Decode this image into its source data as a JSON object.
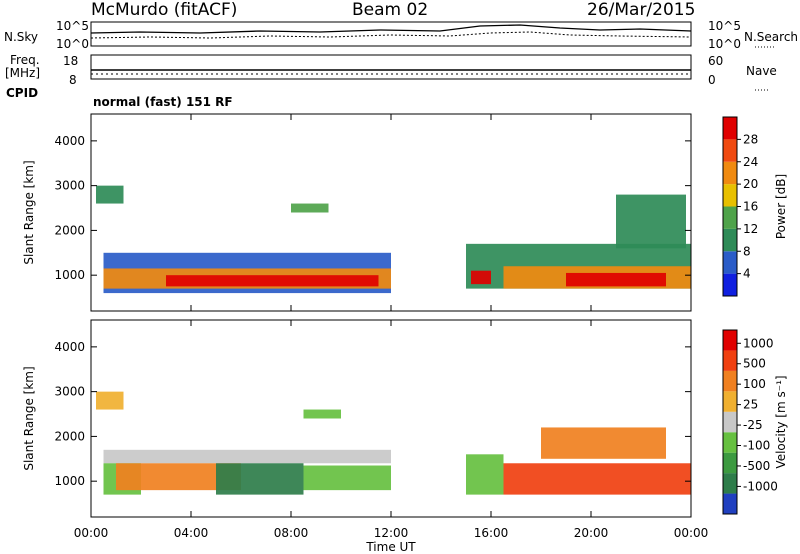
{
  "header": {
    "station": "McMurdo (fitACF)",
    "beam": "Beam 02",
    "date": "26/Mar/2015"
  },
  "top_panel": {
    "left_label": "N.Sky",
    "right_label": "N.Search",
    "left_ticks": [
      "10^5",
      "10^0"
    ],
    "right_ticks": [
      "10^5",
      "10^0"
    ]
  },
  "freq_panel": {
    "left_label_line1": "Freq.",
    "left_label_line2": "[MHz]",
    "left_ticks": [
      "18",
      "8"
    ],
    "right_label": "Nave",
    "right_ticks": [
      "60",
      "0"
    ]
  },
  "cpid": {
    "label": "CPID",
    "value": "normal (fast) 151 RF"
  },
  "chart_data": [
    {
      "type": "heatmap",
      "name": "power",
      "xlabel": "",
      "ylabel": "Slant Range [km]",
      "ylim": [
        200,
        4600
      ],
      "yticks": [
        "1000",
        "2000",
        "3000",
        "4000"
      ],
      "ytick_values": [
        1000,
        2000,
        3000,
        4000
      ],
      "colorbar": {
        "label": "Power [dB]",
        "ticks": [
          "4",
          "8",
          "12",
          "16",
          "20",
          "24",
          "28"
        ],
        "colors": [
          "#1020e0",
          "#2a5cc8",
          "#2e8b57",
          "#4fa34a",
          "#e8c000",
          "#f08a10",
          "#f04a10",
          "#e00000"
        ]
      },
      "regions": [
        {
          "t0": 0.5,
          "t1": 12.0,
          "r0": 600,
          "r1": 1500,
          "level": 1
        },
        {
          "t0": 0.5,
          "t1": 12.0,
          "r0": 700,
          "r1": 1150,
          "level": 5
        },
        {
          "t0": 3.0,
          "t1": 11.5,
          "r0": 750,
          "r1": 1000,
          "level": 7
        },
        {
          "t0": 15.0,
          "t1": 24.0,
          "r0": 700,
          "r1": 1700,
          "level": 2
        },
        {
          "t0": 15.2,
          "t1": 16.0,
          "r0": 800,
          "r1": 1100,
          "level": 7
        },
        {
          "t0": 16.5,
          "t1": 24.0,
          "r0": 700,
          "r1": 1200,
          "level": 5
        },
        {
          "t0": 19.0,
          "t1": 23.0,
          "r0": 750,
          "r1": 1050,
          "level": 7
        },
        {
          "t0": 0.2,
          "t1": 1.3,
          "r0": 2600,
          "r1": 3000,
          "level": 2
        },
        {
          "t0": 8.0,
          "t1": 9.5,
          "r0": 2400,
          "r1": 2600,
          "level": 3
        },
        {
          "t0": 21.0,
          "t1": 23.8,
          "r0": 1600,
          "r1": 2800,
          "level": 2
        }
      ]
    },
    {
      "type": "heatmap",
      "name": "velocity",
      "xlabel": "Time UT",
      "ylabel": "Slant Range [km]",
      "ylim": [
        200,
        4600
      ],
      "yticks": [
        "1000",
        "2000",
        "3000",
        "4000"
      ],
      "ytick_values": [
        1000,
        2000,
        3000,
        4000
      ],
      "xticks": [
        "00:00",
        "04:00",
        "08:00",
        "12:00",
        "16:00",
        "20:00",
        "00:00"
      ],
      "xtick_values": [
        0,
        4,
        8,
        12,
        16,
        20,
        24
      ],
      "colorbar": {
        "label": "Velocity [m s⁻¹]",
        "ticks": [
          "1000",
          "500",
          "100",
          "25",
          "-25",
          "-100",
          "-500",
          "-1000"
        ],
        "colors": [
          "#2040c0",
          "#2e7d4a",
          "#3c9a40",
          "#66c040",
          "#c8c8c8",
          "#f0b030",
          "#f08020",
          "#f04010",
          "#e00000"
        ]
      },
      "regions": [
        {
          "t0": 0.5,
          "t1": 12.0,
          "r0": 1400,
          "r1": 1700,
          "level": 4
        },
        {
          "t0": 0.5,
          "t1": 2.0,
          "r0": 700,
          "r1": 1400,
          "level": 3
        },
        {
          "t0": 1.0,
          "t1": 6.0,
          "r0": 800,
          "r1": 1400,
          "level": 6
        },
        {
          "t0": 5.0,
          "t1": 8.5,
          "r0": 700,
          "r1": 1400,
          "level": 1
        },
        {
          "t0": 8.5,
          "t1": 12.0,
          "r0": 800,
          "r1": 1350,
          "level": 3
        },
        {
          "t0": 15.0,
          "t1": 16.5,
          "r0": 700,
          "r1": 1600,
          "level": 3
        },
        {
          "t0": 16.5,
          "t1": 24.0,
          "r0": 700,
          "r1": 1400,
          "level": 7
        },
        {
          "t0": 18.0,
          "t1": 23.0,
          "r0": 1500,
          "r1": 2200,
          "level": 6
        },
        {
          "t0": 0.2,
          "t1": 1.3,
          "r0": 2600,
          "r1": 3000,
          "level": 5
        },
        {
          "t0": 8.5,
          "t1": 10.0,
          "r0": 2400,
          "r1": 2600,
          "level": 3
        }
      ]
    }
  ]
}
